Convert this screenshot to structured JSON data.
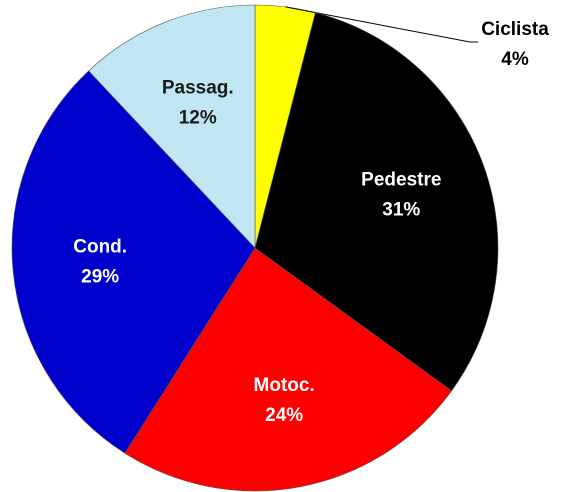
{
  "chart_data": {
    "type": "pie",
    "categories": [
      "Ciclista",
      "Pedestre",
      "Motoc.",
      "Cond.",
      "Passag."
    ],
    "values": [
      4,
      31,
      24,
      29,
      12
    ],
    "value_labels": [
      "4%",
      "31%",
      "24%",
      "29%",
      "12%"
    ],
    "colors": [
      "#ffff00",
      "#000000",
      "#ff0000",
      "#0000cc",
      "#bfe6f2"
    ]
  }
}
